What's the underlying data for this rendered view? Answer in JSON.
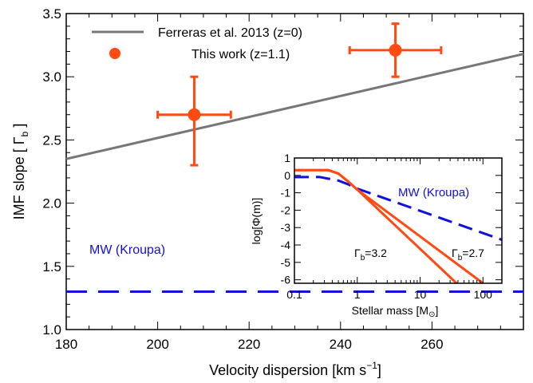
{
  "chart_data": [
    {
      "type": "scatter",
      "xlabel": "Velocity dispersion [km s",
      "xlabel_sup": "−1",
      "xlabel_end": "]",
      "ylabel": "IMF slope [ Γ",
      "ylabel_sub": "b",
      "ylabel_end": " ]",
      "xlim": [
        180,
        280
      ],
      "ylim": [
        1.0,
        3.5
      ],
      "x_ticks": [
        180,
        200,
        220,
        240,
        260
      ],
      "y_ticks": [
        "1.0",
        "1.5",
        "2.0",
        "2.5",
        "3.0",
        "3.5"
      ],
      "legend": {
        "position": "top-left",
        "entries": [
          "Ferreras et al. 2013 (z=0)",
          "This work (z=1.1)"
        ]
      },
      "series": [
        {
          "name": "Ferreras et al. 2013 (z=0)",
          "kind": "line",
          "color": "#777777",
          "x": [
            180,
            280
          ],
          "y": [
            2.35,
            3.18
          ]
        },
        {
          "name": "This work (z=1.1)",
          "kind": "errorbar",
          "color": "#ff4a11",
          "points": [
            {
              "x": 208,
              "y": 2.7,
              "xerr": 8,
              "yerr_low": 0.4,
              "yerr_high": 0.3
            },
            {
              "x": 252,
              "y": 3.21,
              "xerr": 10,
              "yerr_low": 0.21,
              "yerr_high": 0.21
            }
          ]
        },
        {
          "name": "MW (Kroupa)",
          "kind": "dashed-line",
          "color": "#1010e0",
          "x": [
            180,
            280
          ],
          "y": [
            1.3,
            1.3
          ]
        }
      ],
      "annotations": [
        {
          "text": "MW (Kroupa)",
          "color": "#1010e0"
        }
      ]
    },
    {
      "type": "line",
      "xlabel": "Stellar mass [M",
      "xlabel_sub": "⊙",
      "xlabel_end": "]",
      "ylabel": "log[Φ(m)]",
      "x_scale": "log",
      "xlim": [
        0.1,
        200
      ],
      "ylim": [
        -6.2,
        1.0
      ],
      "x_ticks": [
        "0.1",
        "1",
        "10",
        "100"
      ],
      "y_ticks": [
        "1",
        "0",
        "-1",
        "-2",
        "-3",
        "-4",
        "-5",
        "-6"
      ],
      "series": [
        {
          "name": "MW (Kroupa)",
          "color": "#1010e0",
          "dashed": true,
          "x": [
            0.1,
            0.25,
            0.5,
            0.7,
            1,
            200
          ],
          "y": [
            -0.1,
            -0.09,
            -0.3,
            -0.5,
            -0.76,
            -3.7
          ]
        },
        {
          "name": "Γb=3.2",
          "color": "#ff4a11",
          "x": [
            0.1,
            0.35,
            0.5,
            0.7,
            1,
            38
          ],
          "y": [
            0.3,
            0.3,
            0.1,
            -0.32,
            -0.82,
            -6.2
          ]
        },
        {
          "name": "Γb=2.7",
          "color": "#ff4a11",
          "x": [
            0.1,
            0.35,
            0.5,
            0.7,
            1,
            100
          ],
          "y": [
            0.3,
            0.3,
            0.1,
            -0.32,
            -0.82,
            -6.2
          ]
        }
      ],
      "annotations": [
        {
          "text": "MW (Kroupa)",
          "color": "#1010e0"
        },
        {
          "text": "Γ",
          "sub": "b",
          "rest": "=3.2"
        },
        {
          "text": "Γ",
          "sub": "b",
          "rest": "=2.7"
        }
      ]
    }
  ]
}
